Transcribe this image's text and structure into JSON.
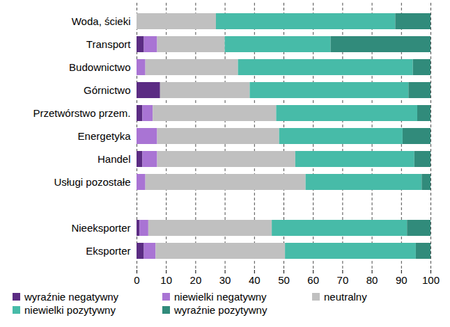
{
  "chart_data": {
    "type": "bar",
    "orientation": "horizontal",
    "stacked": true,
    "grid": true,
    "legend": "bottom",
    "categories": [
      "Woda, ścieki",
      "Transport",
      "Budownictwo",
      "Górnictwo",
      "Przetwórstwo przem.",
      "Energetyka",
      "Handel",
      "Usługi pozostałe",
      null,
      "Nieeksporter",
      "Eksporter"
    ],
    "xlim": [
      0,
      100
    ],
    "xticks": [
      0,
      10,
      20,
      30,
      40,
      50,
      60,
      70,
      80,
      90,
      100
    ],
    "series": [
      {
        "name": "wyraźnie negatywny",
        "color": "#5b2c83",
        "values": [
          0,
          2.5,
          0,
          8,
          2,
          0,
          2,
          0,
          null,
          1,
          2.5
        ]
      },
      {
        "name": "niewielki negatywny",
        "color": "#a974d4",
        "values": [
          0,
          4.5,
          3,
          0,
          3.5,
          7,
          5,
          3,
          null,
          3,
          4
        ]
      },
      {
        "name": "neutralny",
        "color": "#c0c0c0",
        "values": [
          27,
          23,
          31.5,
          30.5,
          42,
          41.5,
          47,
          54.5,
          null,
          42,
          44
        ]
      },
      {
        "name": "niewielki pozytywny",
        "color": "#47bba8",
        "values": [
          61,
          36,
          59.5,
          54,
          48,
          42,
          40.5,
          39.5,
          null,
          46,
          44.5
        ]
      },
      {
        "name": "wyraźnie pozytywny",
        "color": "#318b7b",
        "values": [
          12,
          34,
          6,
          7.5,
          4.5,
          9.5,
          5.5,
          3,
          null,
          8,
          5
        ]
      }
    ]
  }
}
